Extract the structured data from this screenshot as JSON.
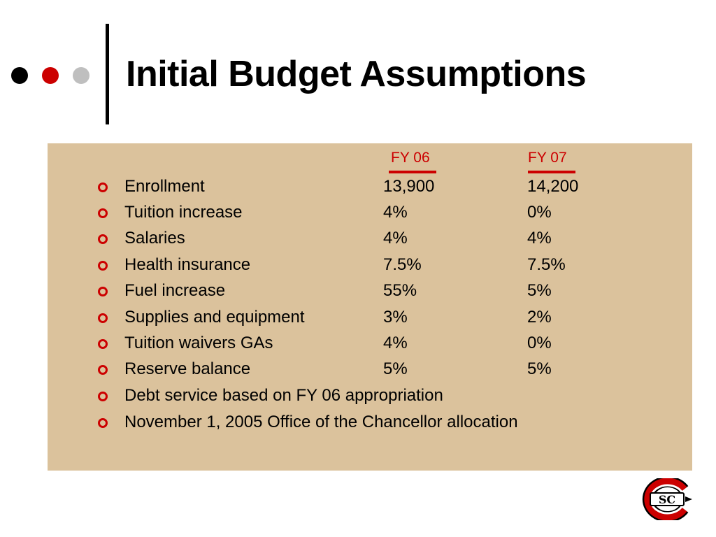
{
  "slide": {
    "title": "Initial Budget Assumptions",
    "column_headers": {
      "fy06": "FY 06",
      "fy07": "FY 07"
    },
    "rows": [
      {
        "label": "Enrollment",
        "fy06": "13,900",
        "fy07": "14,200"
      },
      {
        "label": "Tuition increase",
        "fy06": "4%",
        "fy07": "0%"
      },
      {
        "label": "Salaries",
        "fy06": "4%",
        "fy07": "4%"
      },
      {
        "label": "Health insurance",
        "fy06": "7.5%",
        "fy07": "7.5%"
      },
      {
        "label": "Fuel increase",
        "fy06": "55%",
        "fy07": "5%"
      },
      {
        "label": "Supplies and equipment",
        "fy06": "3%",
        "fy07": "2%"
      },
      {
        "label": "Tuition waivers GAs",
        "fy06": "4%",
        "fy07": "0%"
      },
      {
        "label": "Reserve balance",
        "fy06": "5%",
        "fy07": "5%"
      }
    ],
    "notes": [
      "Debt service based on FY 06 appropriation",
      "November 1, 2005 Office of the Chancellor allocation"
    ],
    "logo": {
      "icon": "scsu-huskies-logo",
      "text": "SC"
    }
  },
  "colors": {
    "accent": "#cc0000",
    "panel": "#dbc29c",
    "dot_gray": "#bfbfbf",
    "text": "#000000"
  }
}
